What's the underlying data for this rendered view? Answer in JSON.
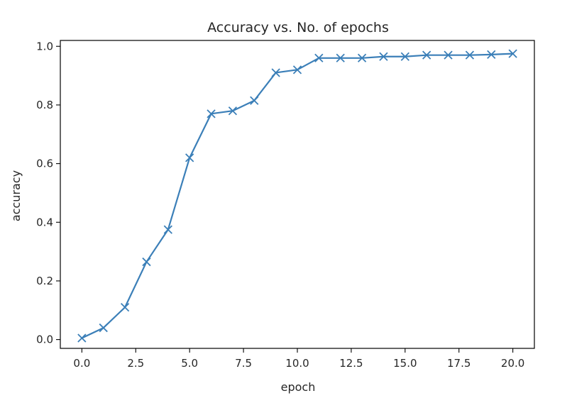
{
  "chart_data": {
    "type": "line",
    "title": "Accuracy vs. No. of epochs",
    "xlabel": "epoch",
    "ylabel": "accuracy",
    "xlim": [
      -1.0,
      21.0
    ],
    "ylim": [
      -0.03,
      1.02
    ],
    "xticks": [
      "0.0",
      "2.5",
      "5.0",
      "7.5",
      "10.0",
      "12.5",
      "15.0",
      "17.5",
      "20.0"
    ],
    "xtick_values": [
      0,
      2.5,
      5,
      7.5,
      10,
      12.5,
      15,
      17.5,
      20
    ],
    "yticks": [
      "0.0",
      "0.2",
      "0.4",
      "0.6",
      "0.8",
      "1.0"
    ],
    "ytick_values": [
      0,
      0.2,
      0.4,
      0.6,
      0.8,
      1.0
    ],
    "grid": false,
    "marker": "x",
    "color": "#3b7fb8",
    "series": [
      {
        "x": [
          0,
          1,
          2,
          3,
          4,
          5,
          6,
          7,
          8,
          9,
          10,
          11,
          12,
          13,
          14,
          15,
          16,
          17,
          18,
          19,
          20
        ],
        "values": [
          0.005,
          0.04,
          0.11,
          0.265,
          0.375,
          0.62,
          0.77,
          0.78,
          0.815,
          0.91,
          0.92,
          0.96,
          0.96,
          0.96,
          0.965,
          0.965,
          0.97,
          0.97,
          0.97,
          0.972,
          0.975
        ]
      }
    ]
  }
}
